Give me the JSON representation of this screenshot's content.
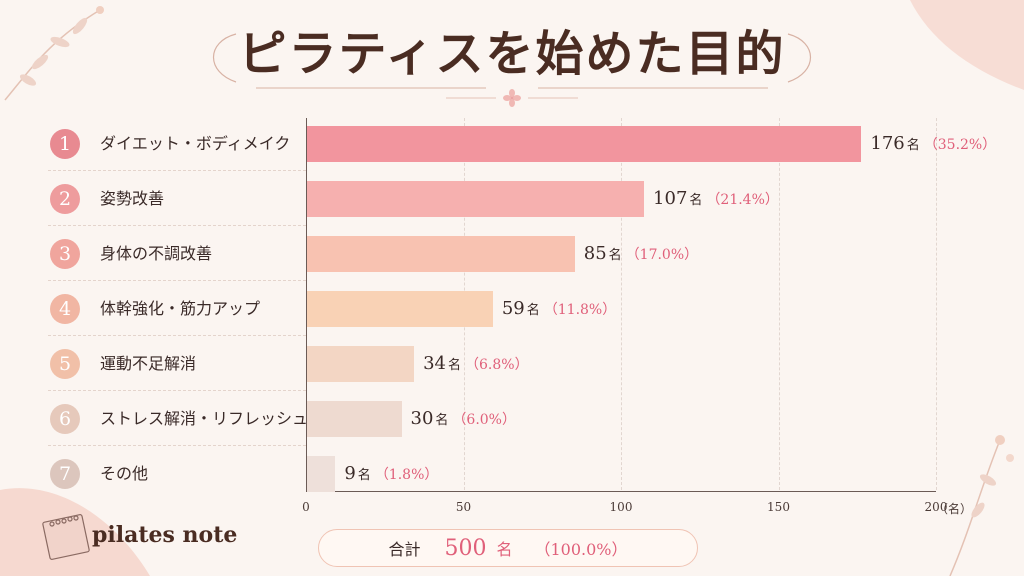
{
  "title": "ピラティスを始めた目的",
  "brand": "pilates note",
  "count_unit": "名",
  "axis_unit": "（名）",
  "total": {
    "label": "合計",
    "value": "500",
    "unit": "名",
    "percent": "（100.0%）"
  },
  "colors": {
    "bars": [
      "#f2959e",
      "#f6b0af",
      "#f8c2b1",
      "#f9d2b5",
      "#f3d6c4",
      "#eedad0",
      "#eee0da"
    ],
    "circles": [
      "#e88a91",
      "#ee9c9d",
      "#f0a59d",
      "#f1b6a3",
      "#f1c0a8",
      "#e6c9bb",
      "#dcc6bd"
    ],
    "percent": "#e0607a"
  },
  "chart_data": {
    "type": "bar",
    "orientation": "horizontal",
    "title": "ピラティスを始めた目的",
    "xlim": [
      0,
      200
    ],
    "ticks": [
      0,
      50,
      100,
      150,
      200
    ],
    "tick_labels": [
      "0",
      "50",
      "100",
      "150",
      "200"
    ],
    "grid": true,
    "ranks": [
      "1",
      "2",
      "3",
      "4",
      "5",
      "6",
      "7"
    ],
    "categories": [
      "ダイエット・ボディメイク",
      "姿勢改善",
      "身体の不調改善",
      "体幹強化・筋力アップ",
      "運動不足解消",
      "ストレス解消・リフレッシュ",
      "その他"
    ],
    "values": [
      176,
      107,
      85,
      59,
      34,
      30,
      9
    ],
    "percent_labels": [
      "（35.2%）",
      "（21.4%）",
      "（17.0%）",
      "（11.8%）",
      "（6.8%）",
      "（6.0%）",
      "（1.8%）"
    ]
  }
}
